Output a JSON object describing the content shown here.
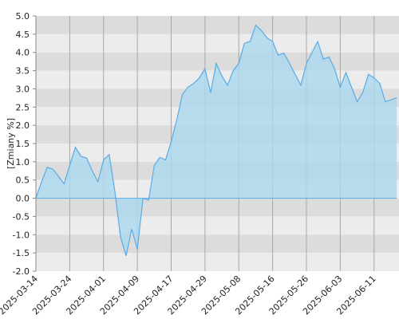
{
  "chart_data": {
    "type": "area",
    "y_label": "[Zmiany %]",
    "categories": [
      "2025-03-14",
      null,
      null,
      null,
      null,
      null,
      "2025-03-24",
      null,
      null,
      null,
      null,
      null,
      "2025-04-01",
      null,
      null,
      null,
      null,
      null,
      "2025-04-09",
      null,
      null,
      null,
      null,
      null,
      "2025-04-17",
      null,
      null,
      null,
      null,
      null,
      "2025-04-29",
      null,
      null,
      null,
      null,
      null,
      "2025-05-08",
      null,
      null,
      null,
      null,
      null,
      "2025-05-16",
      null,
      null,
      null,
      null,
      null,
      "2025-05-26",
      null,
      null,
      null,
      null,
      null,
      "2025-06-03",
      null,
      null,
      null,
      null,
      null,
      "2025-06-11",
      null,
      null,
      null,
      null
    ],
    "values": [
      0.0,
      0.45,
      0.85,
      0.8,
      0.6,
      0.4,
      0.9,
      1.4,
      1.15,
      1.1,
      0.75,
      0.45,
      1.05,
      1.2,
      0.2,
      -1.05,
      -1.58,
      -0.85,
      -1.4,
      0.0,
      -0.05,
      0.9,
      1.12,
      1.05,
      1.55,
      2.15,
      2.85,
      3.05,
      3.15,
      3.3,
      3.55,
      2.9,
      3.7,
      3.35,
      3.1,
      3.5,
      3.7,
      4.25,
      4.3,
      4.75,
      4.6,
      4.4,
      4.3,
      3.92,
      3.98,
      3.7,
      3.4,
      3.1,
      3.7,
      4.0,
      4.3,
      3.82,
      3.87,
      3.55,
      3.05,
      3.45,
      3.05,
      2.65,
      2.9,
      3.4,
      3.3,
      3.15,
      2.65,
      2.7,
      2.75
    ],
    "color": "#5aabe6",
    "fill": "#aad8ee",
    "ylim": [
      -2.0,
      5.0
    ],
    "yticks": [
      {
        "value": 5.0,
        "label": "5.0"
      },
      4.5,
      {
        "value": 4.0,
        "label": "4.0"
      },
      3.5,
      {
        "value": 3.0,
        "label": "3.0"
      },
      2.5,
      {
        "value": 2.0,
        "label": "2.0"
      },
      1.5,
      {
        "value": 1.0,
        "label": "1.0"
      },
      0.5,
      {
        "value": 0.0,
        "label": "0.0"
      },
      -0.5,
      {
        "value": -1.0,
        "label": "-1.0"
      },
      -1.5,
      {
        "value": -2.0,
        "label": "-2.0"
      }
    ],
    "grid": true
  }
}
